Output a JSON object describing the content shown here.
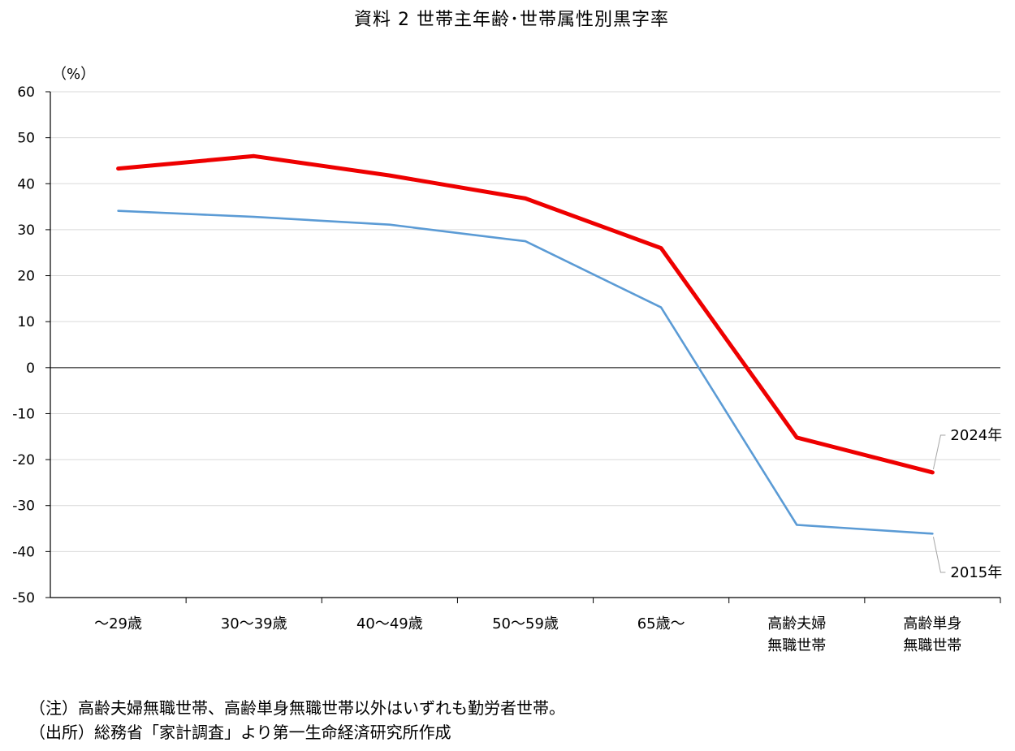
{
  "chart_data": {
    "type": "line",
    "title": "資料 2  世帯主年齢･世帯属性別黒字率",
    "ylabel": "（%）",
    "xlabel": "",
    "ylim": [
      -50,
      60
    ],
    "yticks": [
      60,
      50,
      40,
      30,
      20,
      10,
      0,
      -10,
      -20,
      -30,
      -40,
      -50
    ],
    "categories": [
      [
        "～29歳"
      ],
      [
        "30～39歳"
      ],
      [
        "40～49歳"
      ],
      [
        "50～59歳"
      ],
      [
        "65歳～"
      ],
      [
        "高齢夫婦",
        "無職世帯"
      ],
      [
        "高齢単身",
        "無職世帯"
      ]
    ],
    "series": [
      {
        "name": "2024年",
        "color": "#ee0000",
        "values": [
          43.3,
          46.0,
          41.8,
          36.8,
          26.0,
          -15.2,
          -22.8
        ]
      },
      {
        "name": "2015年",
        "color": "#5b9bd5",
        "values": [
          34.1,
          32.8,
          31.1,
          27.5,
          13.1,
          -34.2,
          -36.1
        ]
      }
    ],
    "grid": true,
    "legend": "right (labels with leader lines)"
  },
  "notes": [
    "（注）高齢夫婦無職世帯、高齢単身無職世帯以外はいずれも勤労者世帯。",
    "（出所）総務省「家計調査」より第一生命経済研究所作成"
  ]
}
